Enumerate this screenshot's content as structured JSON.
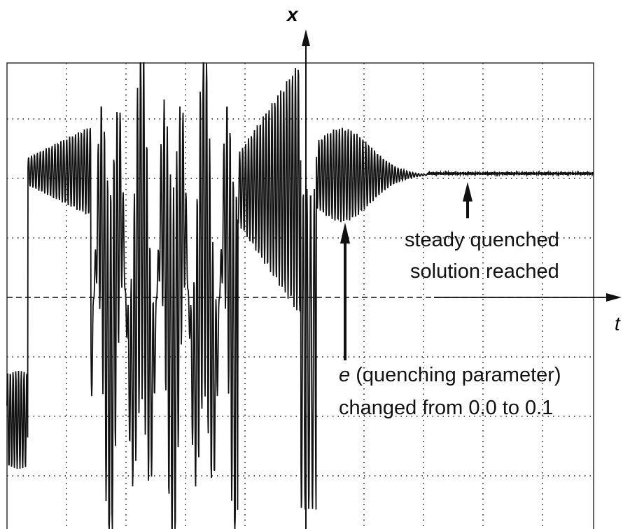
{
  "axes": {
    "y_label": "x",
    "x_label": "t"
  },
  "annotations": [
    {
      "lines": [
        "steady quenched",
        "solution reached"
      ]
    },
    {
      "symbol": "e",
      "rest": " (quenching parameter)",
      "line2": "changed from 0.0 to 0.1"
    }
  ]
}
